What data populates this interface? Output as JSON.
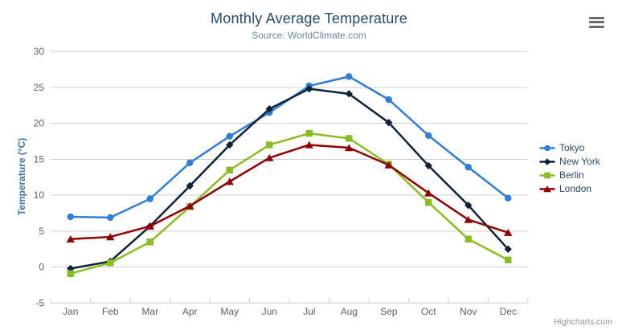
{
  "chart_data": {
    "type": "line",
    "title": "Monthly Average Temperature",
    "subtitle": "Source: WorldClimate.com",
    "xlabel": "",
    "ylabel": "Temperature (°C)",
    "ylim": [
      -5,
      30
    ],
    "ytick_interval": 5,
    "grid": true,
    "legend_position": "right",
    "categories": [
      "Jan",
      "Feb",
      "Mar",
      "Apr",
      "May",
      "Jun",
      "Jul",
      "Aug",
      "Sep",
      "Oct",
      "Nov",
      "Dec"
    ],
    "series": [
      {
        "name": "Tokyo",
        "color": "#2f7ed8",
        "marker": "circle",
        "values": [
          7.0,
          6.9,
          9.5,
          14.5,
          18.2,
          21.5,
          25.2,
          26.5,
          23.3,
          18.3,
          13.9,
          9.6
        ]
      },
      {
        "name": "New York",
        "color": "#0d233a",
        "marker": "diamond",
        "values": [
          -0.2,
          0.8,
          5.7,
          11.3,
          17.0,
          22.0,
          24.8,
          24.1,
          20.1,
          14.1,
          8.6,
          2.5
        ]
      },
      {
        "name": "Berlin",
        "color": "#8bbc21",
        "marker": "square",
        "values": [
          -0.9,
          0.6,
          3.5,
          8.4,
          13.5,
          17.0,
          18.6,
          17.9,
          14.3,
          9.0,
          3.9,
          1.0
        ]
      },
      {
        "name": "London",
        "color": "#910000",
        "marker": "triangle",
        "values": [
          3.9,
          4.2,
          5.7,
          8.5,
          11.9,
          15.2,
          17.0,
          16.6,
          14.2,
          10.3,
          6.6,
          4.8
        ]
      }
    ],
    "credits": "Highcharts.com"
  },
  "theme": {
    "grid_color": "#d0d0d0",
    "axis_line_color": "#c0d0e0",
    "axis_label_color": "#606060",
    "title_color": "#274b6d",
    "subtitle_color": "#6d869f",
    "yaxis_title_color": "#4572a7",
    "legend_text_color": "#274b6d",
    "credits_color": "#909090"
  }
}
